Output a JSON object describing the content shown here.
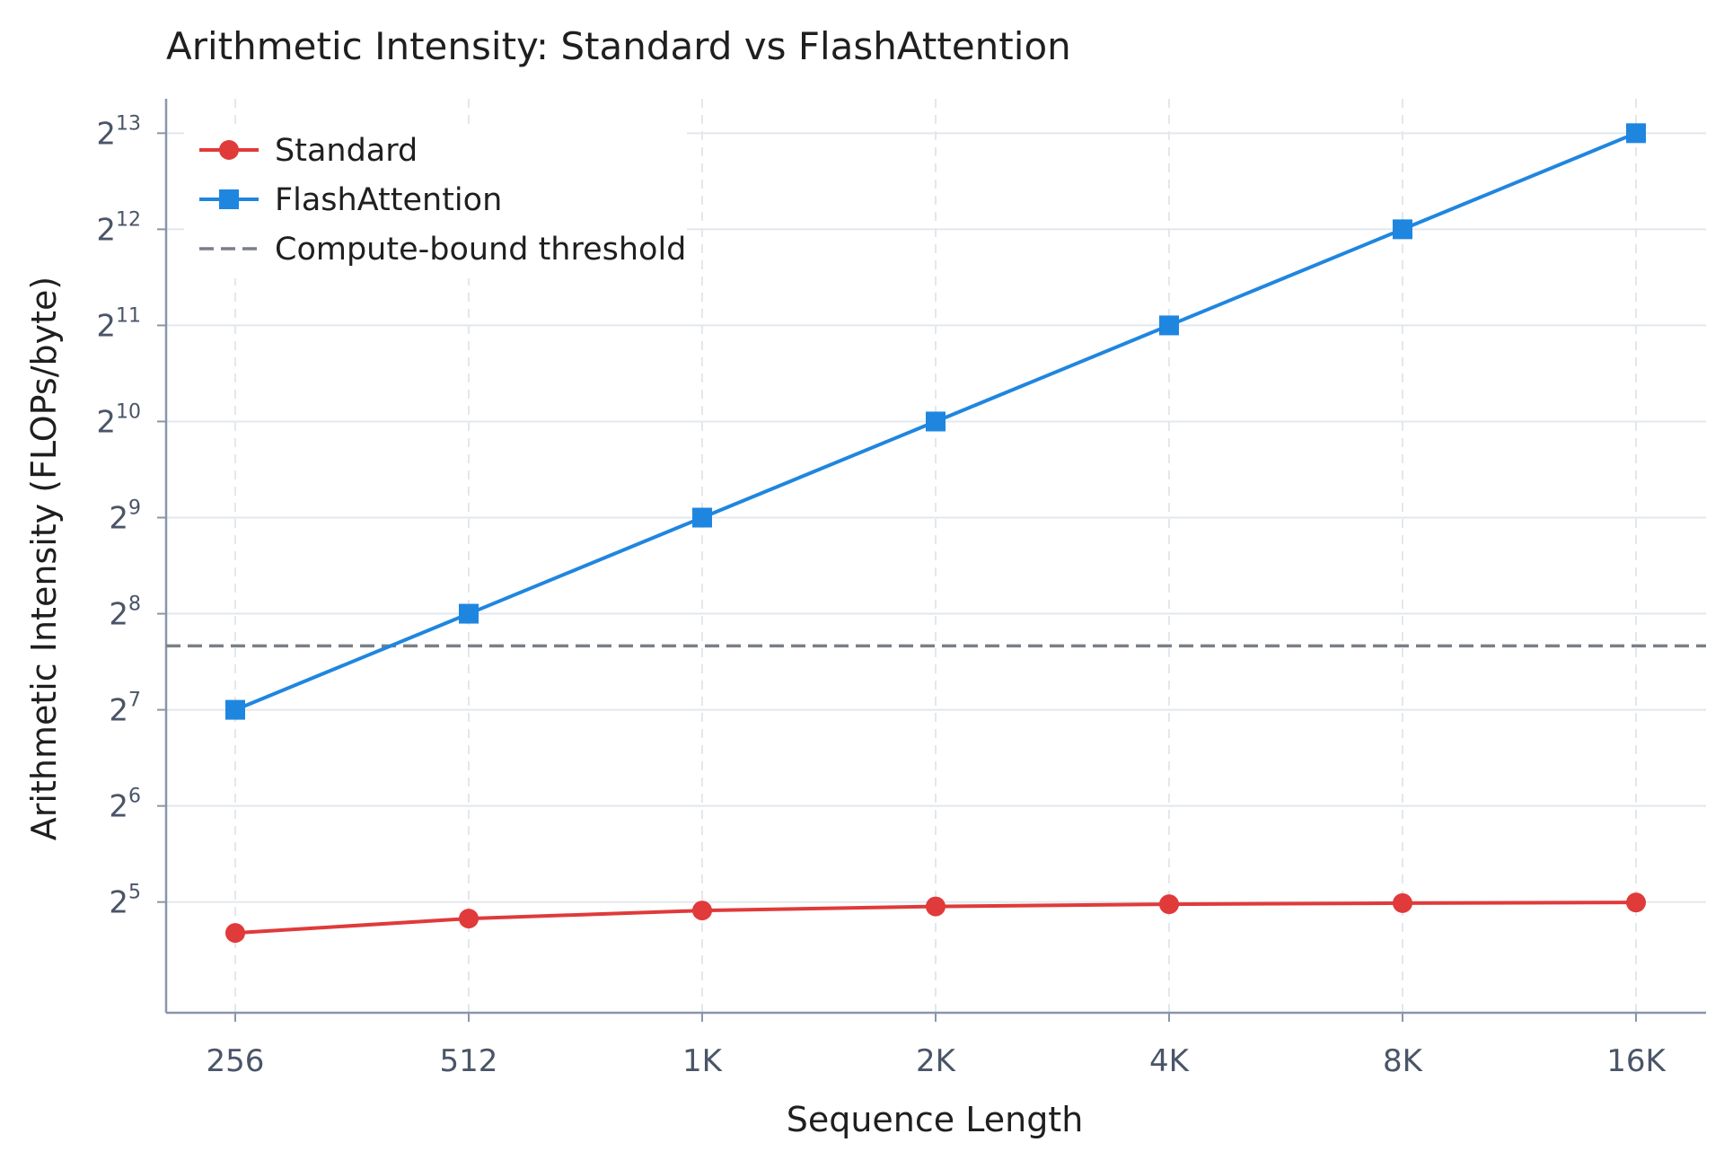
{
  "chart_data": {
    "type": "line",
    "title": "Arithmetic Intensity: Standard vs FlashAttention",
    "xlabel": "Sequence Length",
    "ylabel": "Arithmetic Intensity (FLOPs/byte)",
    "x_scale": "log2",
    "y_scale": "log2",
    "categories": [
      "256",
      "512",
      "1K",
      "2K",
      "4K",
      "8K",
      "16K"
    ],
    "x": [
      256,
      512,
      1024,
      2048,
      4096,
      8192,
      16384
    ],
    "yticks": [
      {
        "base": "2",
        "exp": "5"
      },
      {
        "base": "2",
        "exp": "6"
      },
      {
        "base": "2",
        "exp": "7"
      },
      {
        "base": "2",
        "exp": "8"
      },
      {
        "base": "2",
        "exp": "9"
      },
      {
        "base": "2",
        "exp": "10"
      },
      {
        "base": "2",
        "exp": "11"
      },
      {
        "base": "2",
        "exp": "12"
      },
      {
        "base": "2",
        "exp": "13"
      }
    ],
    "ylim": [
      14.4,
      10500
    ],
    "series": [
      {
        "name": "Standard",
        "color": "#e03a3a",
        "marker": "circle",
        "values": [
          25.6,
          28.4,
          30.1,
          31.0,
          31.5,
          31.75,
          31.9
        ]
      },
      {
        "name": "FlashAttention",
        "color": "#1f86e0",
        "marker": "square",
        "values": [
          128,
          256,
          512,
          1024,
          2048,
          4096,
          8192
        ]
      }
    ],
    "threshold": {
      "name": "Compute-bound threshold",
      "value": 203,
      "color": "#7a7f87",
      "style": "dashed"
    },
    "grid": true,
    "legend_position": "top-left"
  }
}
